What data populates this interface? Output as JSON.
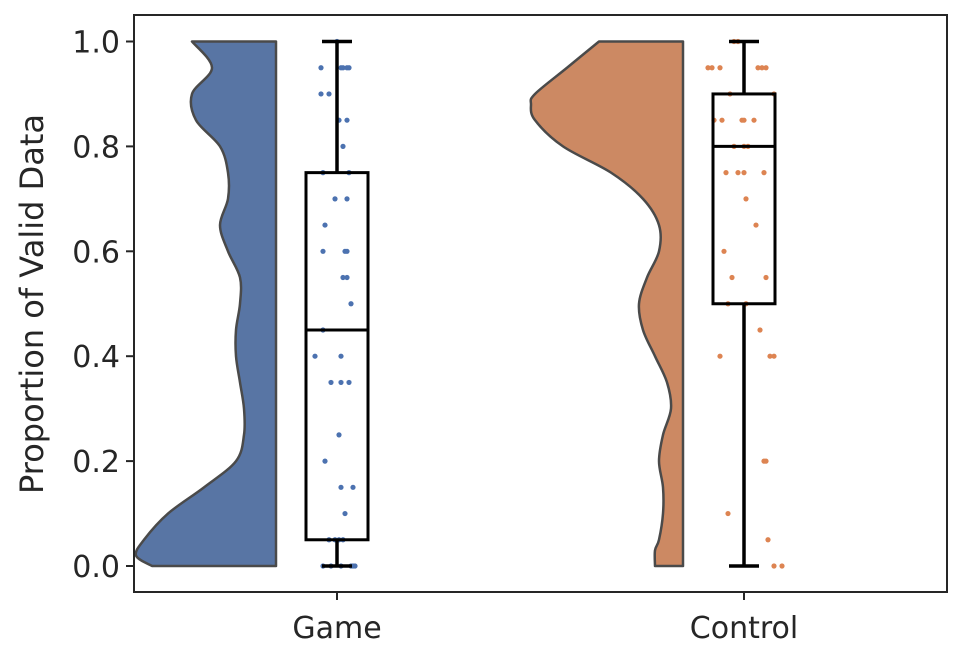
{
  "chart_data": {
    "type": "raincloud",
    "title": "",
    "xlabel": "",
    "ylabel": "Proportion of Valid Data",
    "ylim": [
      -0.05,
      1.05
    ],
    "yticks": [
      0.0,
      0.2,
      0.4,
      0.6,
      0.8,
      1.0
    ],
    "ytick_labels": [
      "0.0",
      "0.2",
      "0.4",
      "0.6",
      "0.8",
      "1.0"
    ],
    "categories": [
      "Game",
      "Control"
    ],
    "grid": false,
    "series": [
      {
        "category": "Game",
        "color": "#5875a4",
        "density_color": "#5875a4",
        "point_color": "#4c72b0",
        "box": {
          "min": 0.0,
          "q1": 0.05,
          "median": 0.45,
          "q3": 0.75,
          "max": 1.0
        },
        "density": [
          [
            0.0,
            0.31
          ],
          [
            0.02,
            0.35
          ],
          [
            0.05,
            0.33
          ],
          [
            0.1,
            0.27
          ],
          [
            0.15,
            0.18
          ],
          [
            0.2,
            0.1
          ],
          [
            0.25,
            0.08
          ],
          [
            0.3,
            0.08
          ],
          [
            0.35,
            0.09
          ],
          [
            0.4,
            0.1
          ],
          [
            0.45,
            0.1
          ],
          [
            0.5,
            0.09
          ],
          [
            0.55,
            0.09
          ],
          [
            0.6,
            0.12
          ],
          [
            0.65,
            0.14
          ],
          [
            0.7,
            0.12
          ],
          [
            0.75,
            0.12
          ],
          [
            0.8,
            0.14
          ],
          [
            0.85,
            0.2
          ],
          [
            0.9,
            0.21
          ],
          [
            0.95,
            0.16
          ],
          [
            1.0,
            0.21
          ]
        ],
        "points": [
          [
            0.0,
            -0.35
          ],
          [
            0.0,
            -0.15
          ],
          [
            0.0,
            0.1
          ],
          [
            0.0,
            0.35
          ],
          [
            0.0,
            0.4
          ],
          [
            0.0,
            0.45
          ],
          [
            0.05,
            -0.2
          ],
          [
            0.05,
            -0.05
          ],
          [
            0.05,
            0.05
          ],
          [
            0.05,
            0.15
          ],
          [
            0.1,
            0.2
          ],
          [
            0.15,
            0.1
          ],
          [
            0.15,
            0.4
          ],
          [
            0.2,
            -0.3
          ],
          [
            0.25,
            0.05
          ],
          [
            0.35,
            -0.15
          ],
          [
            0.35,
            0.1
          ],
          [
            0.35,
            0.3
          ],
          [
            0.4,
            -0.55
          ],
          [
            0.4,
            0.1
          ],
          [
            0.45,
            -0.35
          ],
          [
            0.5,
            0.35
          ],
          [
            0.55,
            0.15
          ],
          [
            0.55,
            0.25
          ],
          [
            0.6,
            -0.35
          ],
          [
            0.6,
            0.2
          ],
          [
            0.6,
            0.25
          ],
          [
            0.65,
            -0.3
          ],
          [
            0.7,
            -0.05
          ],
          [
            0.7,
            0.25
          ],
          [
            0.75,
            -0.35
          ],
          [
            0.75,
            0.3
          ],
          [
            0.8,
            0.15
          ],
          [
            0.85,
            0.05
          ],
          [
            0.85,
            0.25
          ],
          [
            0.9,
            -0.4
          ],
          [
            0.9,
            -0.2
          ],
          [
            0.95,
            -0.4
          ],
          [
            0.95,
            0.1
          ],
          [
            0.95,
            0.15
          ],
          [
            0.95,
            0.25
          ],
          [
            0.95,
            0.3
          ],
          [
            1.0,
            0.0
          ]
        ]
      },
      {
        "category": "Control",
        "color": "#cc8963",
        "density_color": "#cc8963",
        "point_color": "#dd8452",
        "box": {
          "min": 0.0,
          "q1": 0.5,
          "median": 0.8,
          "q3": 0.9,
          "max": 1.0
        },
        "density": [
          [
            0.0,
            0.07
          ],
          [
            0.03,
            0.07
          ],
          [
            0.05,
            0.06
          ],
          [
            0.1,
            0.05
          ],
          [
            0.15,
            0.05
          ],
          [
            0.2,
            0.06
          ],
          [
            0.25,
            0.05
          ],
          [
            0.3,
            0.03
          ],
          [
            0.35,
            0.04
          ],
          [
            0.4,
            0.07
          ],
          [
            0.45,
            0.1
          ],
          [
            0.5,
            0.11
          ],
          [
            0.55,
            0.09
          ],
          [
            0.6,
            0.06
          ],
          [
            0.65,
            0.06
          ],
          [
            0.7,
            0.1
          ],
          [
            0.75,
            0.18
          ],
          [
            0.8,
            0.3
          ],
          [
            0.85,
            0.37
          ],
          [
            0.88,
            0.38
          ],
          [
            0.9,
            0.37
          ],
          [
            0.95,
            0.29
          ],
          [
            1.0,
            0.21
          ]
        ],
        "points": [
          [
            0.0,
            0.75
          ],
          [
            0.0,
            0.95
          ],
          [
            0.05,
            0.6
          ],
          [
            0.1,
            -0.4
          ],
          [
            0.2,
            0.5
          ],
          [
            0.2,
            0.55
          ],
          [
            0.4,
            -0.6
          ],
          [
            0.4,
            0.65
          ],
          [
            0.4,
            0.75
          ],
          [
            0.45,
            0.4
          ],
          [
            0.5,
            -0.4
          ],
          [
            0.5,
            0.05
          ],
          [
            0.55,
            -0.3
          ],
          [
            0.55,
            0.55
          ],
          [
            0.6,
            -0.5
          ],
          [
            0.65,
            0.3
          ],
          [
            0.7,
            0.05
          ],
          [
            0.75,
            -0.45
          ],
          [
            0.75,
            -0.15
          ],
          [
            0.75,
            0.0
          ],
          [
            0.75,
            0.5
          ],
          [
            0.8,
            -0.25
          ],
          [
            0.8,
            0.0
          ],
          [
            0.8,
            0.1
          ],
          [
            0.85,
            -0.75
          ],
          [
            0.85,
            -0.55
          ],
          [
            0.85,
            -0.05
          ],
          [
            0.85,
            0.0
          ],
          [
            0.85,
            0.25
          ],
          [
            0.9,
            -0.35
          ],
          [
            0.9,
            0.75
          ],
          [
            0.95,
            -0.9
          ],
          [
            0.95,
            -0.8
          ],
          [
            0.95,
            -0.6
          ],
          [
            0.95,
            0.35
          ],
          [
            0.95,
            0.45
          ],
          [
            0.95,
            0.55
          ],
          [
            1.0,
            -0.25
          ],
          [
            1.0,
            -0.15
          ]
        ]
      }
    ]
  }
}
